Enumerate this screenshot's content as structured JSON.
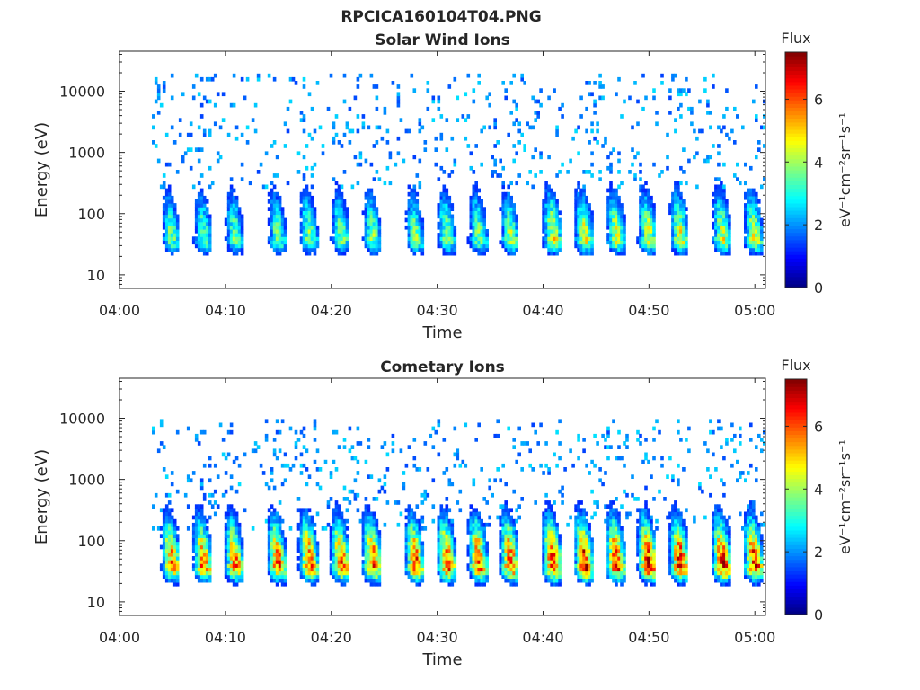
{
  "figure": {
    "title": "RPCICA160104T04.PNG"
  },
  "chart_data": [
    {
      "type": "heatmap",
      "title": "Solar Wind Ions",
      "xlabel": "Time",
      "ylabel": "Energy (eV)",
      "x_ticks": [
        "04:00",
        "04:10",
        "04:20",
        "04:30",
        "04:40",
        "04:50",
        "05:00"
      ],
      "xlim": [
        "04:00",
        "05:01"
      ],
      "y_ticks": [
        "10",
        "100",
        "1000",
        "10000"
      ],
      "ylim": [
        6,
        45000
      ],
      "yscale": "log",
      "colorbar": {
        "title": "Flux",
        "label": "eV⁻¹cm⁻²sr⁻¹s⁻¹",
        "ticks": [
          "0",
          "2",
          "4",
          "6"
        ],
        "range": [
          0,
          7.5
        ],
        "colormap": "jet"
      },
      "data_start": "04:03",
      "sweep_times": [
        "04:05",
        "04:08",
        "04:11",
        "04:15",
        "04:18",
        "04:21",
        "04:24",
        "04:28",
        "04:31",
        "04:34",
        "04:37",
        "04:41",
        "04:44",
        "04:47",
        "04:50",
        "04:53",
        "04:57",
        "05:00"
      ],
      "sweep_peak_energy_eV": 40,
      "sweep_max_flux": [
        3.8,
        3.8,
        3.8,
        3.8,
        3.9,
        3.9,
        3.9,
        3.9,
        4.0,
        4.0,
        4.1,
        4.7,
        4.7,
        4.6,
        4.6,
        4.6,
        4.5,
        4.6
      ],
      "background_energy_range_eV": [
        500,
        20000
      ]
    },
    {
      "type": "heatmap",
      "title": "Cometary Ions",
      "xlabel": "Time",
      "ylabel": "Energy (eV)",
      "x_ticks": [
        "04:00",
        "04:10",
        "04:20",
        "04:30",
        "04:40",
        "04:50",
        "05:00"
      ],
      "xlim": [
        "04:00",
        "05:01"
      ],
      "y_ticks": [
        "10",
        "100",
        "1000",
        "10000"
      ],
      "ylim": [
        6,
        45000
      ],
      "yscale": "log",
      "colorbar": {
        "title": "Flux",
        "label": "eV⁻¹cm⁻²sr⁻¹s⁻¹",
        "ticks": [
          "0",
          "2",
          "4",
          "6"
        ],
        "range": [
          0,
          7.5
        ],
        "colormap": "jet"
      },
      "data_start": "04:03",
      "sweep_times": [
        "04:05",
        "04:08",
        "04:11",
        "04:15",
        "04:18",
        "04:21",
        "04:24",
        "04:28",
        "04:31",
        "04:34",
        "04:37",
        "04:41",
        "04:44",
        "04:47",
        "04:50",
        "04:53",
        "04:57",
        "05:00"
      ],
      "sweep_peak_energy_eV": 40,
      "sweep_max_flux": [
        5.8,
        5.9,
        6.0,
        6.0,
        6.2,
        6.2,
        6.2,
        6.2,
        6.3,
        6.3,
        6.4,
        6.8,
        6.8,
        6.7,
        6.7,
        6.7,
        6.6,
        6.7
      ],
      "background_energy_range_eV": [
        300,
        10000
      ]
    }
  ]
}
